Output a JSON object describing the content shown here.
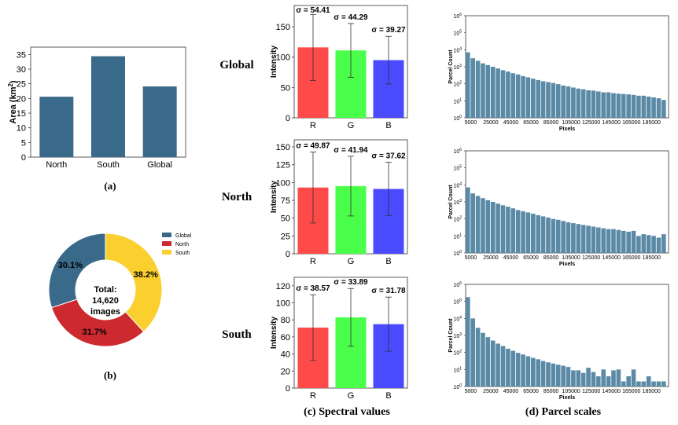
{
  "chart_data": [
    {
      "id": "area",
      "type": "bar",
      "caption": "(a)",
      "ylabel": "Area (km",
      "ylabel_sup": "2",
      "ylabel_close": ")",
      "categories": [
        "North",
        "South",
        "Global"
      ],
      "values": [
        20.6,
        34.4,
        24.1
      ],
      "ylim": [
        0,
        37.5
      ],
      "yticks": [
        "0",
        "5",
        "10",
        "15",
        "20",
        "25",
        "30",
        "35"
      ],
      "color": "#3a6a8a"
    },
    {
      "id": "images",
      "type": "pie",
      "caption": "(b)",
      "center_text": [
        "Total:",
        "14,620",
        "images"
      ],
      "slices": [
        {
          "label": "Global",
          "value": 30.1,
          "display": "30.1%",
          "color": "#3a6a8a"
        },
        {
          "label": "North",
          "value": 31.7,
          "display": "31.7%",
          "color": "#cc2a2e"
        },
        {
          "label": "South",
          "value": 38.2,
          "display": "38.2%",
          "color": "#fbd02e"
        }
      ]
    },
    {
      "id": "spectral",
      "type": "bar",
      "caption": "(c) Spectral values",
      "ylabel": "Intensity",
      "categories": [
        "R",
        "G",
        "B"
      ],
      "colors": [
        "#ff4a4a",
        "#4aff4a",
        "#4a4aff"
      ],
      "panels": [
        {
          "row_label": "Global",
          "values": [
            116,
            111,
            95
          ],
          "std": [
            54.41,
            44.29,
            39.27
          ],
          "std_labels": [
            "σ = 54.41",
            "σ = 44.29",
            "σ = 39.27"
          ],
          "ylim": [
            0,
            185
          ],
          "yticks": [
            0,
            50,
            100,
            150
          ]
        },
        {
          "row_label": "North",
          "values": [
            93,
            95,
            91
          ],
          "std": [
            49.87,
            41.94,
            37.62
          ],
          "std_labels": [
            "σ = 49.87",
            "σ = 41.94",
            "σ = 37.62"
          ],
          "ylim": [
            0,
            160
          ],
          "yticks": [
            0,
            25,
            50,
            75,
            100,
            125,
            150
          ]
        },
        {
          "row_label": "South",
          "values": [
            71,
            83,
            75
          ],
          "std": [
            38.57,
            33.89,
            31.78
          ],
          "std_labels": [
            "σ = 38.57",
            "σ = 33.89",
            "σ = 31.78"
          ],
          "ylim": [
            0,
            130
          ],
          "yticks": [
            0,
            20,
            40,
            60,
            80,
            100,
            120
          ]
        }
      ]
    },
    {
      "id": "parcels",
      "type": "bar",
      "caption": "(d) Parcel scales",
      "xlabel": "Pixels",
      "ylabel": "Parcel Count",
      "yscale": "log",
      "ylog_range": [
        0,
        6
      ],
      "ytick_labels": [
        "10",
        "10",
        "10",
        "10",
        "10",
        "10",
        "10"
      ],
      "ytick_exps": [
        "0",
        "1",
        "2",
        "3",
        "4",
        "5",
        "6"
      ],
      "xticks": [
        "5000",
        "25000",
        "45000",
        "65000",
        "85000",
        "105000",
        "125000",
        "145000",
        "165000",
        "185000"
      ],
      "bin_start": 0,
      "bin_width": 5000,
      "color": "#5a8aa6",
      "panels": [
        {
          "row_label": "Global",
          "log_counts": [
            3.85,
            3.5,
            3.35,
            3.2,
            3.1,
            3.0,
            2.9,
            2.8,
            2.72,
            2.62,
            2.55,
            2.45,
            2.38,
            2.3,
            2.22,
            2.15,
            2.1,
            2.05,
            1.98,
            1.9,
            1.85,
            1.78,
            1.72,
            1.68,
            1.62,
            1.6,
            1.55,
            1.5,
            1.5,
            1.45,
            1.42,
            1.4,
            1.38,
            1.35,
            1.3,
            1.3,
            1.25,
            1.2,
            1.15,
            1.05,
            1.2,
            1.3,
            1.0,
            1.3
          ]
        },
        {
          "row_label": "North",
          "log_counts": [
            3.85,
            3.5,
            3.35,
            3.22,
            3.1,
            3.0,
            2.9,
            2.8,
            2.72,
            2.62,
            2.52,
            2.45,
            2.38,
            2.3,
            2.22,
            2.15,
            2.08,
            2.0,
            1.95,
            1.88,
            1.8,
            1.75,
            1.7,
            1.65,
            1.6,
            1.55,
            1.5,
            1.45,
            1.4,
            1.4,
            1.35,
            1.3,
            1.25,
            1.3,
            1.0,
            1.1,
            1.05,
            1.0,
            0.9,
            1.1,
            1.1,
            0.8,
            0.9,
            1.0
          ]
        },
        {
          "row_label": "South",
          "log_counts": [
            5.25,
            4.0,
            3.45,
            3.15,
            2.9,
            2.7,
            2.52,
            2.38,
            2.22,
            2.1,
            1.98,
            1.88,
            1.78,
            1.68,
            1.6,
            1.5,
            1.42,
            1.35,
            1.28,
            1.22,
            1.15,
            0.95,
            0.95,
            0.8,
            1.1,
            0.85,
            0.6,
            1.0,
            0.6,
            0.95,
            1.0,
            0.3,
            0.6,
            1.0,
            0.3,
            0.3,
            0.6,
            0.3,
            0.3,
            0.3,
            0.3
          ]
        }
      ]
    }
  ]
}
